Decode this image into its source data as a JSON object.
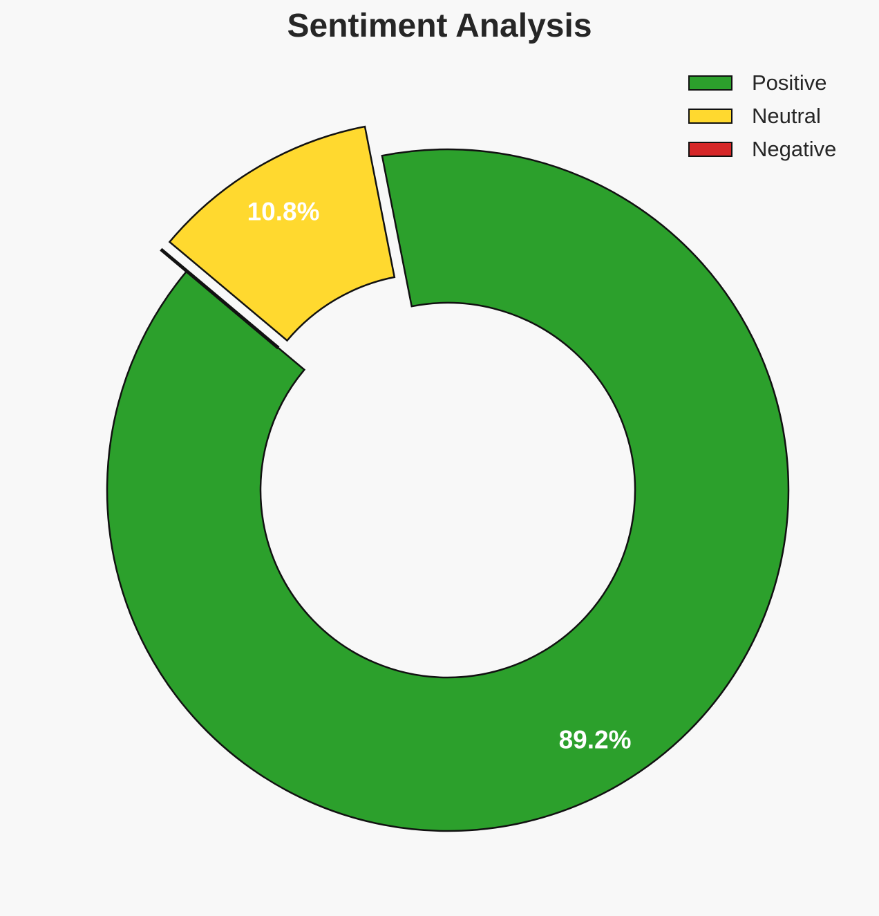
{
  "chart_data": {
    "type": "pie",
    "variant": "donut",
    "title": "Sentiment Analysis",
    "categories": [
      "Positive",
      "Neutral",
      "Negative"
    ],
    "values": [
      89.2,
      10.8,
      0.0
    ],
    "labels": [
      "89.2%",
      "10.8%",
      ""
    ],
    "colors": [
      "#2ca02c",
      "#ffd92f",
      "#d62728"
    ],
    "exploded": [
      "",
      "Neutral",
      "Negative"
    ],
    "legend_position": "top-right"
  }
}
